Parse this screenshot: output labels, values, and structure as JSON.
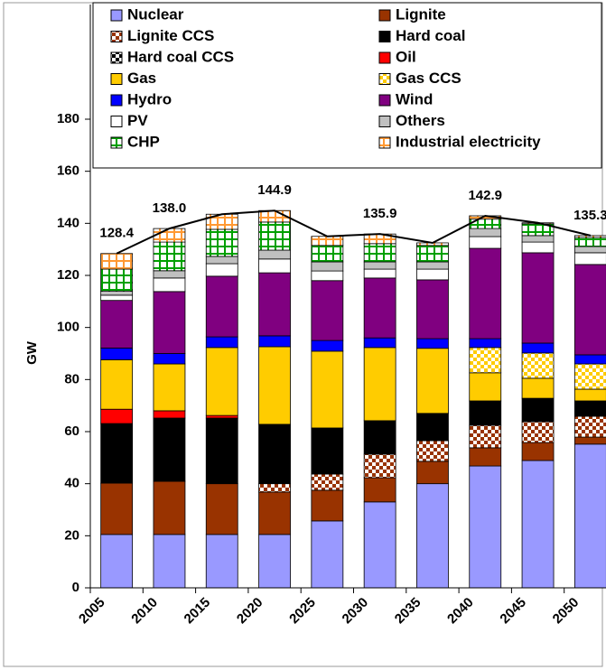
{
  "chart_data": {
    "type": "stacked_bar",
    "ylabel": "GW",
    "categories": [
      "2005",
      "2010",
      "2015",
      "2020",
      "2025",
      "2030",
      "2035",
      "2040",
      "2045",
      "2050"
    ],
    "ylim": [
      0,
      180
    ],
    "yticks": [
      0,
      20,
      40,
      60,
      80,
      100,
      120,
      140,
      160,
      180
    ],
    "series": [
      {
        "name": "Nuclear",
        "color": "#9999ff",
        "values": [
          20.5,
          20.5,
          20.5,
          20.5,
          25.7,
          33,
          40,
          46.8,
          48.9,
          55.2
        ]
      },
      {
        "name": "Lignite",
        "color": "#993300",
        "values": [
          19.7,
          20.4,
          19.5,
          16.3,
          11.8,
          9.3,
          8.6,
          7,
          6.9,
          2.7
        ]
      },
      {
        "name": "Lignite CCS",
        "color": "#993300",
        "pattern": "checker",
        "values": [
          0,
          0,
          0,
          3.2,
          6.2,
          9,
          7.9,
          8.6,
          8,
          8
        ]
      },
      {
        "name": "Hard coal",
        "color": "#000000",
        "values": [
          22.9,
          24.3,
          25.2,
          22.8,
          17.7,
          12.9,
          10.5,
          9.4,
          9,
          5.9
        ]
      },
      {
        "name": "Hard coal CCS",
        "color": "#000000",
        "pattern": "checker",
        "values": [
          0,
          0,
          0,
          0,
          0,
          0,
          0,
          0,
          0,
          0
        ]
      },
      {
        "name": "Oil",
        "color": "#ff0000",
        "values": [
          5.5,
          2.8,
          1,
          0,
          0,
          0,
          0,
          0,
          0,
          0
        ]
      },
      {
        "name": "Gas",
        "color": "#ffcc00",
        "values": [
          19,
          18,
          26.1,
          29.8,
          29.5,
          28.1,
          25,
          10.8,
          7.7,
          4.5
        ]
      },
      {
        "name": "Gas CCS",
        "color": "#ffcc00",
        "pattern": "checker",
        "values": [
          0,
          0,
          0,
          0,
          0,
          0,
          0,
          9.7,
          9.7,
          9.7
        ]
      },
      {
        "name": "Hydro",
        "color": "#0000ff",
        "values": [
          4.5,
          4,
          4.1,
          4.2,
          4.1,
          3.7,
          3.7,
          3.4,
          3.8,
          3.5
        ]
      },
      {
        "name": "Wind",
        "color": "#800080",
        "values": [
          18.3,
          23.8,
          23.3,
          24.2,
          23,
          23,
          22.6,
          34.7,
          34.7,
          34.7
        ]
      },
      {
        "name": "PV",
        "color": "#ffffff",
        "values": [
          2,
          5.2,
          4.8,
          5.3,
          3.7,
          3.4,
          4.1,
          4.5,
          4.1,
          4.5
        ]
      },
      {
        "name": "Others",
        "color": "#c0c0c0",
        "values": [
          1.5,
          2.8,
          2.8,
          3.4,
          3.5,
          2.8,
          2.8,
          3.1,
          2.5,
          2.4
        ]
      },
      {
        "name": "CHP",
        "color": "#00a000",
        "pattern": "grid",
        "values": [
          8.5,
          11,
          10.4,
          10.8,
          6.3,
          7,
          6.3,
          3.6,
          4.5,
          3.5
        ]
      },
      {
        "name": "Industrial electricity",
        "color": "#ff9933",
        "pattern": "grid",
        "values": [
          6,
          5.2,
          5.8,
          4.4,
          3.5,
          3.7,
          1,
          1.3,
          0.4,
          0.7
        ]
      }
    ],
    "total": {
      "color": "#000000",
      "values": [
        128.4,
        138.0,
        143.5,
        144.9,
        135.0,
        135.9,
        132.5,
        142.9,
        140.2,
        135.3
      ],
      "value_labels": [
        "128.4",
        "138.0",
        null,
        "144.9",
        null,
        "135.9",
        null,
        "142.9",
        null,
        "135.3"
      ]
    }
  }
}
